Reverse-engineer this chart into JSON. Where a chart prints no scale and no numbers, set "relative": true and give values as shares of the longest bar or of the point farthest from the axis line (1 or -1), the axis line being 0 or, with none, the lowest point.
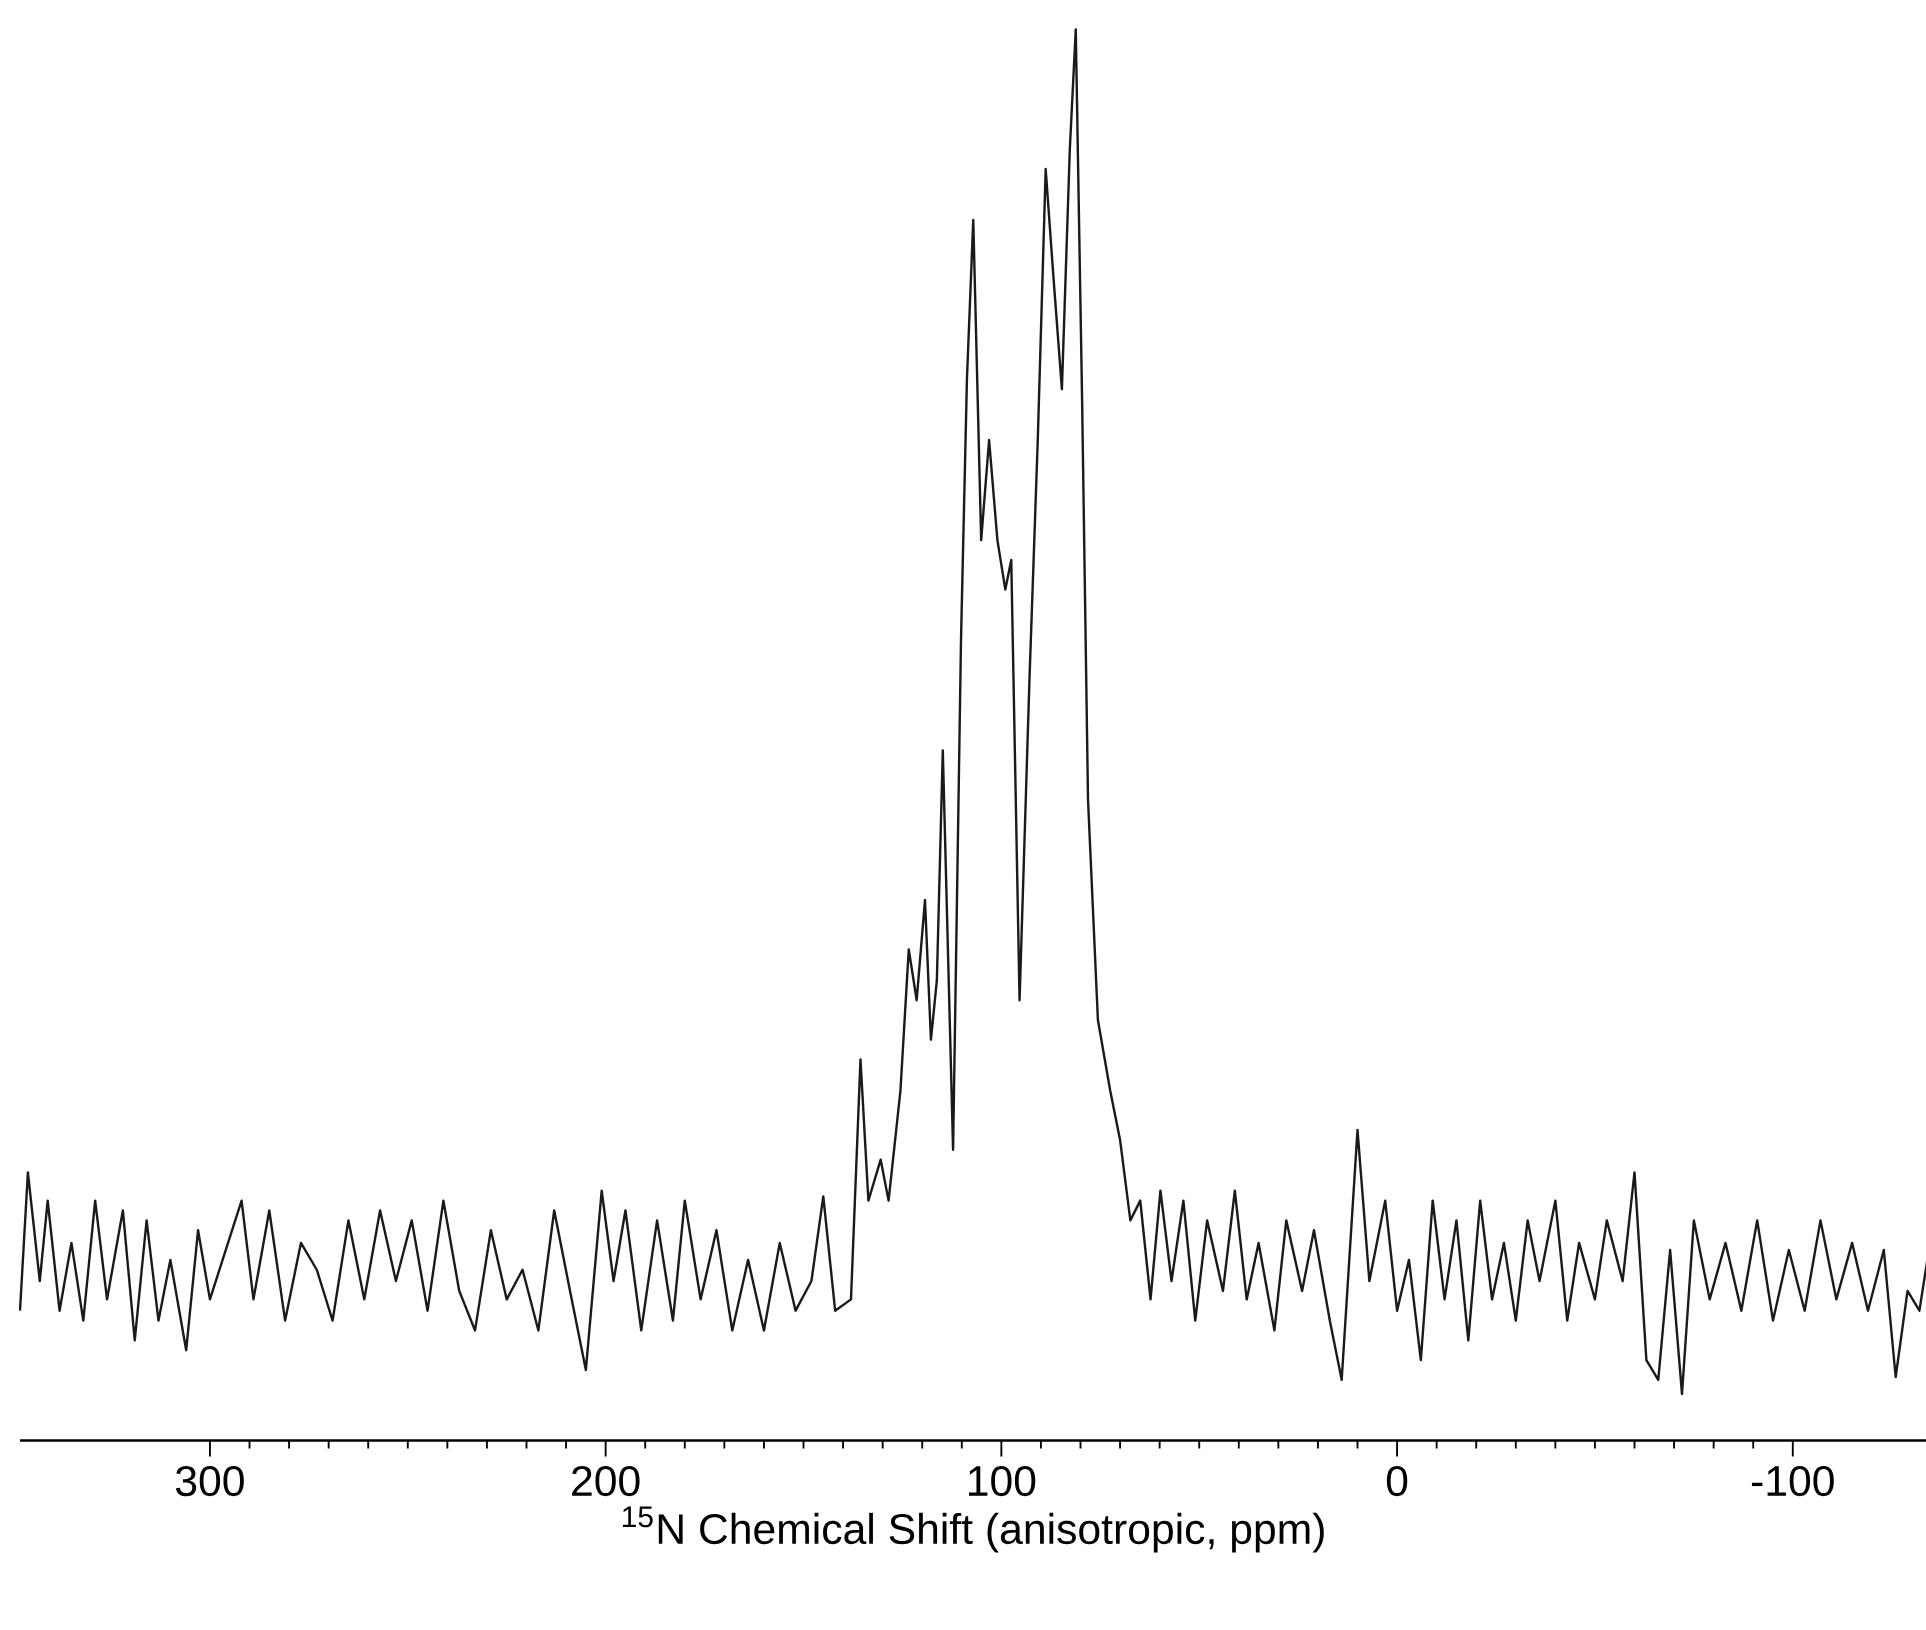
{
  "chart_data": {
    "type": "line",
    "xlabel": "$^{15}$N Chemical Shift (anisotropic, ppm)",
    "relative": true,
    "xlim": [
      348,
      -134
    ],
    "xticks": [
      300,
      200,
      100,
      0,
      -100
    ],
    "grid": false,
    "marker": "none",
    "line_style": "solid",
    "tick_labels": "x",
    "series": [
      {
        "color": "#1a1a1a",
        "x": [
          348,
          346,
          343,
          341,
          338,
          335,
          332,
          329,
          326,
          322,
          319,
          316,
          313,
          310,
          306,
          303,
          300,
          296,
          292,
          289,
          285,
          281,
          277,
          273,
          269,
          265,
          261,
          257,
          253,
          249,
          245,
          241,
          237,
          233,
          229,
          225,
          221,
          217,
          213,
          209,
          205,
          201,
          198,
          195,
          191,
          187,
          183,
          180,
          176,
          172,
          168,
          164,
          160,
          156,
          152,
          148,
          145,
          142,
          138,
          135.6,
          133.6,
          130.5,
          128.5,
          125.5,
          123.4,
          121.4,
          119.3,
          117.8,
          116.3,
          114.8,
          112.2,
          110.2,
          108.7,
          107.1,
          105.1,
          103.1,
          101,
          99,
          97.5,
          95.4,
          92.9,
          90.8,
          88.8,
          86.8,
          84.7,
          82.7,
          81.2,
          79.6,
          78.1,
          75.6,
          72.5,
          70,
          67.4,
          64.9,
          62.3,
          59.8,
          57,
          54,
          51,
          48,
          44,
          41,
          38,
          35,
          31,
          28,
          24,
          21,
          17,
          14,
          10,
          7,
          3,
          0,
          -3,
          -6,
          -9,
          -12,
          -15,
          -18,
          -21,
          -24,
          -27,
          -30,
          -33,
          -36,
          -40,
          -43,
          -46,
          -50,
          -53,
          -57,
          -60,
          -63,
          -66,
          -69,
          -72,
          -75,
          -79,
          -83,
          -87,
          -91,
          -95,
          -99,
          -103,
          -107,
          -111,
          -115,
          -119,
          -123,
          -126,
          -129,
          -132,
          -134
        ],
        "values": [
          0.092,
          0.19,
          0.113,
          0.17,
          0.092,
          0.14,
          0.085,
          0.17,
          0.1,
          0.163,
          0.071,
          0.156,
          0.085,
          0.128,
          0.064,
          0.149,
          0.1,
          0.135,
          0.17,
          0.1,
          0.163,
          0.085,
          0.14,
          0.121,
          0.085,
          0.156,
          0.1,
          0.163,
          0.113,
          0.156,
          0.092,
          0.17,
          0.106,
          0.078,
          0.149,
          0.1,
          0.121,
          0.078,
          0.163,
          0.106,
          0.05,
          0.177,
          0.113,
          0.163,
          0.078,
          0.156,
          0.085,
          0.17,
          0.1,
          0.149,
          0.078,
          0.128,
          0.078,
          0.14,
          0.092,
          0.113,
          0.173,
          0.092,
          0.1,
          0.27,
          0.17,
          0.199,
          0.17,
          0.248,
          0.348,
          0.312,
          0.383,
          0.284,
          0.326,
          0.489,
          0.206,
          0.567,
          0.752,
          0.865,
          0.638,
          0.709,
          0.638,
          0.603,
          0.624,
          0.312,
          0.539,
          0.709,
          0.901,
          0.823,
          0.745,
          0.915,
          1.0,
          0.738,
          0.454,
          0.298,
          0.248,
          0.213,
          0.156,
          0.17,
          0.1,
          0.177,
          0.113,
          0.17,
          0.085,
          0.156,
          0.106,
          0.177,
          0.1,
          0.14,
          0.078,
          0.156,
          0.106,
          0.149,
          0.085,
          0.043,
          0.22,
          0.113,
          0.17,
          0.092,
          0.128,
          0.057,
          0.17,
          0.1,
          0.156,
          0.071,
          0.17,
          0.1,
          0.14,
          0.085,
          0.156,
          0.113,
          0.17,
          0.085,
          0.14,
          0.1,
          0.156,
          0.113,
          0.19,
          0.057,
          0.043,
          0.135,
          0.033,
          0.156,
          0.1,
          0.14,
          0.092,
          0.156,
          0.085,
          0.135,
          0.092,
          0.156,
          0.1,
          0.14,
          0.092,
          0.135,
          0.045,
          0.106,
          0.092,
          0.128
        ]
      }
    ]
  }
}
